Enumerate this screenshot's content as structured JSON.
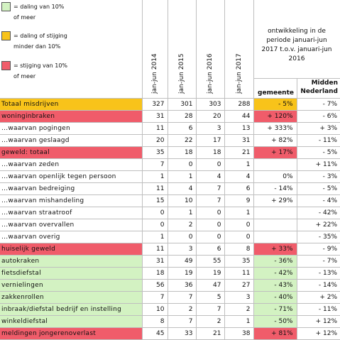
{
  "legend": [
    {
      "color": "#d3f2c2",
      "text": "= daling van 10%\nof meer"
    },
    {
      "color": "#f8c31a",
      "text": "= daling of stijging\nminder dan 10%"
    },
    {
      "color": "#f05c6a",
      "text": "= stijging van 10%\nof meer"
    }
  ],
  "years": [
    "jan-jun 2014",
    "jan-jun 2015",
    "jan-jun 2016",
    "jan-jun 2017"
  ],
  "ontwikkeling": "ontwikkeling in de\nperiode januari-jun\n2017 t.o.v. januari-jun\n2016",
  "col_gemeente": "gemeente",
  "col_midden": "Midden\nNederland",
  "rows": [
    {
      "label": "Totaal misdrijven",
      "v": [
        "327",
        "301",
        "303",
        "288"
      ],
      "gem": "- 5%",
      "mid": "- 7%",
      "hl": "orange"
    },
    {
      "label": "woninginbraken",
      "v": [
        "31",
        "28",
        "20",
        "44"
      ],
      "gem": "+ 120%",
      "mid": "- 6%",
      "hl": "red"
    },
    {
      "label": "...waarvan pogingen",
      "v": [
        "11",
        "6",
        "3",
        "13"
      ],
      "gem": "+ 333%",
      "mid": "+ 3%",
      "hl": ""
    },
    {
      "label": "...waarvan geslaagd",
      "v": [
        "20",
        "22",
        "17",
        "31"
      ],
      "gem": "+ 82%",
      "mid": "- 11%",
      "hl": ""
    },
    {
      "label": "geweld: totaal",
      "v": [
        "35",
        "18",
        "18",
        "21"
      ],
      "gem": "+ 17%",
      "mid": "- 5%",
      "hl": "red"
    },
    {
      "label": "...waarvan zeden",
      "v": [
        "7",
        "0",
        "0",
        "1"
      ],
      "gem": "",
      "mid": "+ 11%",
      "hl": ""
    },
    {
      "label": "...waarvan openlijk tegen persoon",
      "v": [
        "1",
        "1",
        "4",
        "4"
      ],
      "gem": "0%",
      "mid": "- 3%",
      "hl": ""
    },
    {
      "label": "...waarvan bedreiging",
      "v": [
        "11",
        "4",
        "7",
        "6"
      ],
      "gem": "- 14%",
      "mid": "- 5%",
      "hl": ""
    },
    {
      "label": "...waarvan mishandeling",
      "v": [
        "15",
        "10",
        "7",
        "9"
      ],
      "gem": "+ 29%",
      "mid": "- 4%",
      "hl": ""
    },
    {
      "label": "...waarvan straatroof",
      "v": [
        "0",
        "1",
        "0",
        "1"
      ],
      "gem": "",
      "mid": "- 42%",
      "hl": ""
    },
    {
      "label": "...waarvan overvallen",
      "v": [
        "0",
        "2",
        "0",
        "0"
      ],
      "gem": "",
      "mid": "+ 22%",
      "hl": ""
    },
    {
      "label": "...waarvan overig",
      "v": [
        "1",
        "0",
        "0",
        "0"
      ],
      "gem": "",
      "mid": "- 35%",
      "hl": ""
    },
    {
      "label": "huiselijk geweld",
      "v": [
        "11",
        "3",
        "6",
        "8"
      ],
      "gem": "+ 33%",
      "mid": "- 9%",
      "hl": "red"
    },
    {
      "label": "autokraken",
      "v": [
        "31",
        "49",
        "55",
        "35"
      ],
      "gem": "- 36%",
      "mid": "- 7%",
      "hl": "green"
    },
    {
      "label": "fietsdiefstal",
      "v": [
        "18",
        "19",
        "19",
        "11"
      ],
      "gem": "- 42%",
      "mid": "- 13%",
      "hl": "green"
    },
    {
      "label": "vernielingen",
      "v": [
        "56",
        "36",
        "47",
        "27"
      ],
      "gem": "- 43%",
      "mid": "- 14%",
      "hl": "green"
    },
    {
      "label": "zakkenrollen",
      "v": [
        "7",
        "7",
        "5",
        "3"
      ],
      "gem": "- 40%",
      "mid": "+ 2%",
      "hl": "green"
    },
    {
      "label": "inbraak/diefstal bedrijf en instelling",
      "v": [
        "10",
        "2",
        "7",
        "2"
      ],
      "gem": "- 71%",
      "mid": "- 11%",
      "hl": "green"
    },
    {
      "label": "winkeldiefstal",
      "v": [
        "8",
        "7",
        "2",
        "1"
      ],
      "gem": "- 50%",
      "mid": "+ 12%",
      "hl": "green"
    },
    {
      "label": "meldingen jongerenoverlast",
      "v": [
        "45",
        "33",
        "21",
        "38"
      ],
      "gem": "+ 81%",
      "mid": "+ 12%",
      "hl": "red"
    }
  ]
}
